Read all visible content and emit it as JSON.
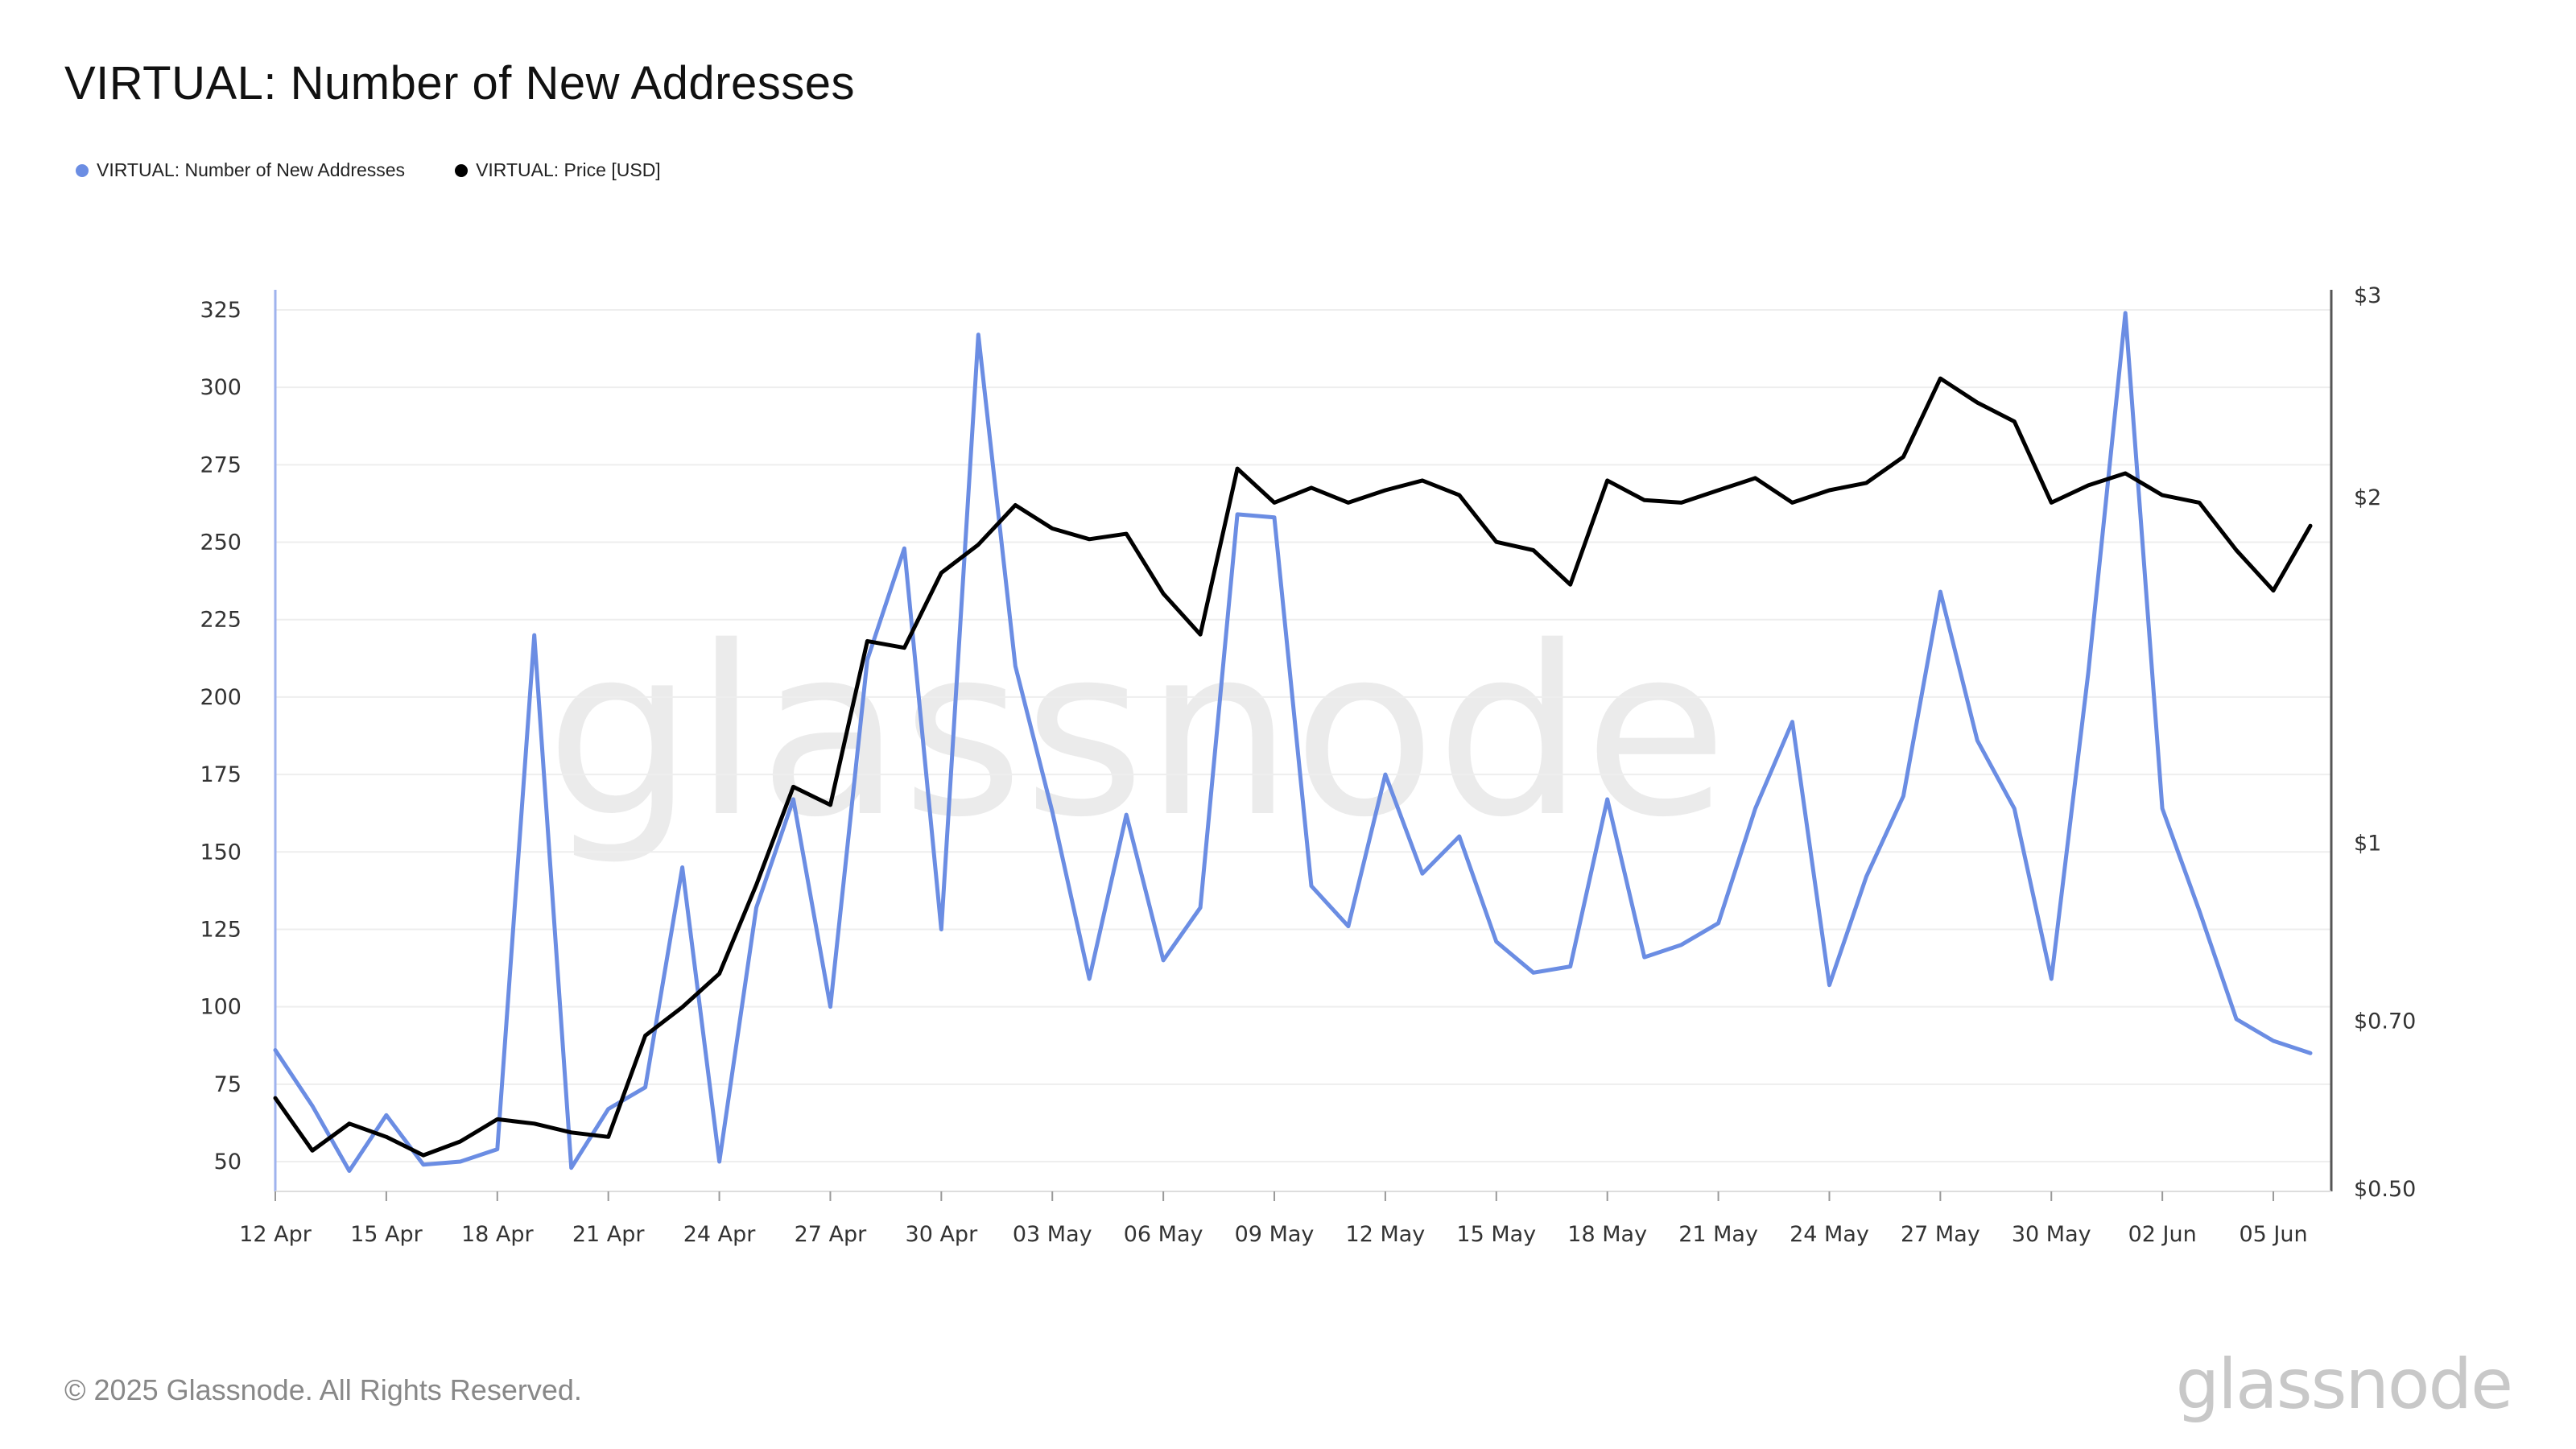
{
  "title": "VIRTUAL: Number of New Addresses",
  "footer": {
    "copyright": "© 2025 Glassnode. All Rights Reserved.",
    "brand": "glassnode"
  },
  "watermark": "glassnode",
  "colors": {
    "addresses": "#6b8de3",
    "price": "#000000",
    "grid": "#eeeeee",
    "axis": "#555555"
  },
  "chart_data": {
    "type": "line",
    "title": "VIRTUAL: Number of New Addresses",
    "legend_position": "top-left",
    "grid": true,
    "x": [
      "12 Apr",
      "13 Apr",
      "14 Apr",
      "15 Apr",
      "16 Apr",
      "17 Apr",
      "18 Apr",
      "19 Apr",
      "20 Apr",
      "21 Apr",
      "22 Apr",
      "23 Apr",
      "24 Apr",
      "25 Apr",
      "26 Apr",
      "27 Apr",
      "28 Apr",
      "29 Apr",
      "30 Apr",
      "01 May",
      "02 May",
      "03 May",
      "04 May",
      "05 May",
      "06 May",
      "07 May",
      "08 May",
      "09 May",
      "10 May",
      "11 May",
      "12 May",
      "13 May",
      "14 May",
      "15 May",
      "16 May",
      "17 May",
      "18 May",
      "19 May",
      "20 May",
      "21 May",
      "22 May",
      "23 May",
      "24 May",
      "25 May",
      "26 May",
      "27 May",
      "28 May",
      "29 May",
      "30 May",
      "31 May",
      "01 Jun",
      "02 Jun",
      "03 Jun",
      "04 Jun",
      "05 Jun",
      "06 Jun"
    ],
    "x_tick_labels": [
      "12 Apr",
      "15 Apr",
      "18 Apr",
      "21 Apr",
      "24 Apr",
      "27 Apr",
      "30 Apr",
      "03 May",
      "06 May",
      "09 May",
      "12 May",
      "15 May",
      "18 May",
      "21 May",
      "24 May",
      "27 May",
      "30 May",
      "02 Jun",
      "05 Jun"
    ],
    "left_axis": {
      "ticks": [
        50,
        75,
        100,
        125,
        150,
        175,
        200,
        225,
        250,
        275,
        300,
        325
      ],
      "range": [
        40,
        330
      ]
    },
    "right_axis": {
      "scale": "log",
      "ticks": [
        0.5,
        0.7,
        1,
        2,
        3
      ],
      "tick_labels": [
        "$0.50",
        "$0.70",
        "$1",
        "$2",
        "$3"
      ],
      "range": [
        0.5,
        3
      ]
    },
    "series": [
      {
        "name": "VIRTUAL: Number of New Addresses",
        "axis": "left",
        "color": "#6b8de3",
        "values": [
          86,
          68,
          47,
          65,
          49,
          50,
          54,
          220,
          48,
          67,
          74,
          145,
          50,
          132,
          167,
          100,
          212,
          248,
          125,
          317,
          210,
          163,
          109,
          162,
          115,
          132,
          259,
          258,
          139,
          126,
          175,
          143,
          155,
          121,
          111,
          113,
          167,
          116,
          120,
          127,
          164,
          192,
          107,
          142,
          168,
          234,
          186,
          164,
          109,
          208,
          324,
          164,
          131,
          96,
          89,
          85
        ]
      },
      {
        "name": "VIRTUAL: Price [USD]",
        "axis": "right",
        "color": "#000000",
        "values": [
          0.6,
          0.54,
          0.57,
          0.555,
          0.535,
          0.55,
          0.575,
          0.57,
          0.56,
          0.555,
          0.68,
          0.72,
          0.77,
          0.92,
          1.12,
          1.08,
          1.5,
          1.48,
          1.72,
          1.82,
          1.97,
          1.88,
          1.84,
          1.86,
          1.65,
          1.52,
          2.12,
          1.98,
          2.04,
          1.98,
          2.03,
          2.07,
          2.01,
          1.83,
          1.8,
          1.68,
          2.07,
          1.99,
          1.98,
          2.03,
          2.08,
          1.98,
          2.03,
          2.06,
          2.17,
          2.54,
          2.42,
          2.33,
          1.98,
          2.05,
          2.1,
          2.01,
          1.98,
          1.8,
          1.66,
          1.89
        ]
      }
    ]
  }
}
